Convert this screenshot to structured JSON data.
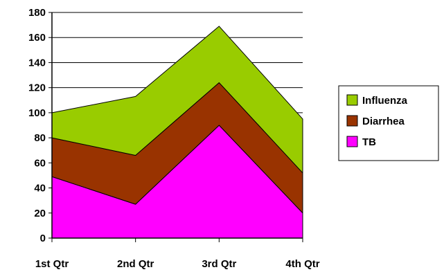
{
  "chart_data": {
    "type": "area",
    "stacked": true,
    "categories": [
      "1st Qtr",
      "2nd Qtr",
      "3rd Qtr",
      "4th Qtr"
    ],
    "series": [
      {
        "name": "TB",
        "values": [
          49,
          27,
          90,
          20
        ],
        "color": "#ff00ff"
      },
      {
        "name": "Diarrhea",
        "values": [
          31,
          39,
          34,
          32
        ],
        "color": "#993300"
      },
      {
        "name": "Influenza",
        "values": [
          20,
          47,
          45,
          43
        ],
        "color": "#99cc00"
      }
    ],
    "legend_order": [
      "Influenza",
      "Diarrhea",
      "TB"
    ],
    "legend_position": "right",
    "ylim": [
      0,
      180
    ],
    "yticks": [
      "0",
      "20",
      "40",
      "60",
      "80",
      "100",
      "120",
      "140",
      "160",
      "180"
    ],
    "grid": true
  }
}
